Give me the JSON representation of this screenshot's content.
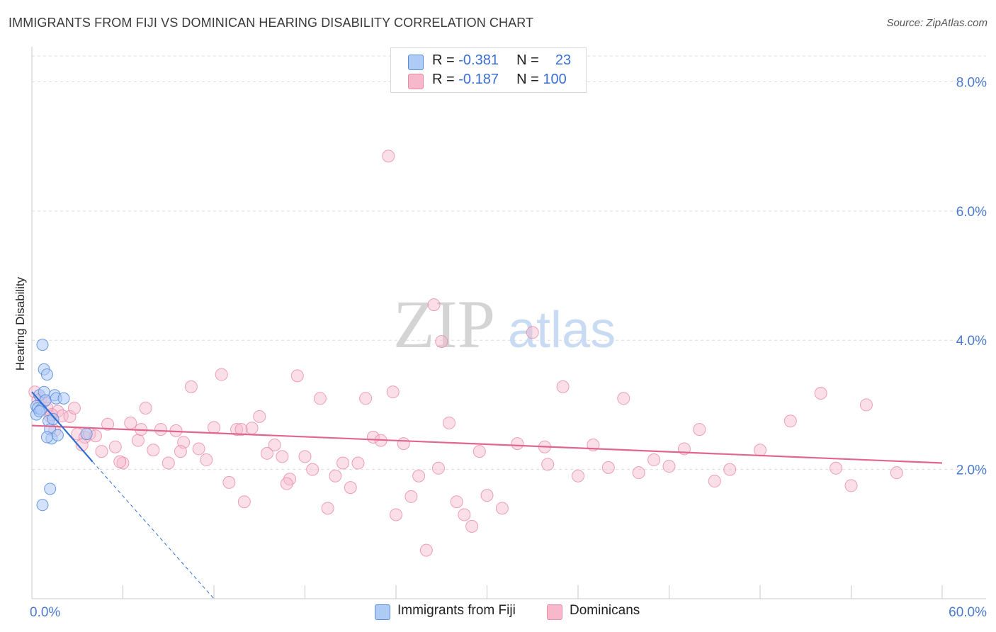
{
  "title": "IMMIGRANTS FROM FIJI VS DOMINICAN HEARING DISABILITY CORRELATION CHART",
  "source": "Source: ZipAtlas.com",
  "watermark": {
    "zip": "ZIP",
    "atlas": "atlas"
  },
  "legend": {
    "rows": [
      {
        "r_label": "R =",
        "r_value": "-0.381",
        "n_label": "N =",
        "n_value": "23"
      },
      {
        "r_label": "R =",
        "r_value": "-0.187",
        "n_label": "N =",
        "n_value": "100"
      }
    ]
  },
  "bottom_legend": [
    "Immigrants from Fiji",
    "Dominicans"
  ],
  "colors": {
    "fiji_fill": "#aecbf5",
    "fiji_stroke": "#5a8fe0",
    "fiji_line": "#2f6fd0",
    "dom_fill": "#f7b8cc",
    "dom_stroke": "#e98aa8",
    "dom_line": "#e06690",
    "grid": "#dedede",
    "tick_text": "#4a7bd0"
  },
  "chart_data": {
    "type": "scatter",
    "title": "IMMIGRANTS FROM FIJI VS DOMINICAN HEARING DISABILITY CORRELATION CHART",
    "xlabel": "",
    "ylabel": "Hearing Disability",
    "xlim": [
      0,
      60
    ],
    "ylim": [
      0,
      8.4
    ],
    "x_tick_labels": [
      "0.0%",
      "60.0%"
    ],
    "y_ticks": [
      2,
      4,
      6,
      8
    ],
    "y_tick_labels": [
      "2.0%",
      "4.0%",
      "6.0%",
      "8.0%"
    ],
    "series": [
      {
        "name": "Immigrants from Fiji",
        "x": [
          0.3,
          0.3,
          0.4,
          0.5,
          0.6,
          0.7,
          0.8,
          0.8,
          0.9,
          1.0,
          1.1,
          1.2,
          1.2,
          1.3,
          1.4,
          1.5,
          1.6,
          1.7,
          2.1,
          3.6,
          0.5,
          1.0,
          0.7
        ],
        "y": [
          2.98,
          2.85,
          2.95,
          3.15,
          2.93,
          3.93,
          3.55,
          3.2,
          3.07,
          3.47,
          2.75,
          2.62,
          1.7,
          2.48,
          2.78,
          3.15,
          3.1,
          2.53,
          3.1,
          2.55,
          2.9,
          2.5,
          1.45
        ],
        "trend": {
          "x0": 0,
          "y0": 3.2,
          "x1": 4.0,
          "y1": 2.12,
          "dashed_to_x": 12.0,
          "dashed_to_y": 0
        }
      },
      {
        "name": "Dominicans",
        "x": [
          0.2,
          0.4,
          0.6,
          0.8,
          1.0,
          1.2,
          1.5,
          1.7,
          2.0,
          2.5,
          3.0,
          3.5,
          3.8,
          4.2,
          4.6,
          5.0,
          5.5,
          6.0,
          6.5,
          7.0,
          7.5,
          8.0,
          8.5,
          9.0,
          9.5,
          10.0,
          10.5,
          11.0,
          11.5,
          12.0,
          12.5,
          13.0,
          13.5,
          14.0,
          14.5,
          15.0,
          15.5,
          16.0,
          16.5,
          17.0,
          17.5,
          18.0,
          18.5,
          19.0,
          19.5,
          20.0,
          20.5,
          21.0,
          21.5,
          22.0,
          22.5,
          23.0,
          23.5,
          24.0,
          24.5,
          25.0,
          25.5,
          26.0,
          26.5,
          27.0,
          27.5,
          28.0,
          28.5,
          29.0,
          29.5,
          30.0,
          31.0,
          32.0,
          33.0,
          34.0,
          35.0,
          36.0,
          37.0,
          38.0,
          39.0,
          40.0,
          41.0,
          42.0,
          43.0,
          44.0,
          45.0,
          46.0,
          48.0,
          50.0,
          52.0,
          53.0,
          54.0,
          55.0,
          57.0,
          1.3,
          2.8,
          3.3,
          5.8,
          7.2,
          9.8,
          13.8,
          16.8,
          23.8,
          26.8,
          33.8
        ],
        "y": [
          3.2,
          3.07,
          3.1,
          3.05,
          2.95,
          2.82,
          2.6,
          2.9,
          2.83,
          2.82,
          2.55,
          2.5,
          2.55,
          2.52,
          2.28,
          2.7,
          2.35,
          2.1,
          2.72,
          2.45,
          2.95,
          2.3,
          2.62,
          2.1,
          2.6,
          2.42,
          3.28,
          2.32,
          2.15,
          2.65,
          3.47,
          1.8,
          2.62,
          1.5,
          2.64,
          2.82,
          2.25,
          2.38,
          2.2,
          1.85,
          3.45,
          2.2,
          2.0,
          3.1,
          1.4,
          1.9,
          2.1,
          1.72,
          2.1,
          3.1,
          2.5,
          2.45,
          6.85,
          1.3,
          2.4,
          1.58,
          1.9,
          0.75,
          4.55,
          3.98,
          2.72,
          1.5,
          1.3,
          1.12,
          2.28,
          1.6,
          1.4,
          2.4,
          4.12,
          2.08,
          3.28,
          1.9,
          2.38,
          2.03,
          3.1,
          1.95,
          2.15,
          2.05,
          2.32,
          2.62,
          1.82,
          2.0,
          2.3,
          2.75,
          3.18,
          2.02,
          1.75,
          3.0,
          1.95,
          2.85,
          2.95,
          2.38,
          2.12,
          2.62,
          2.28,
          2.62,
          1.78,
          3.2,
          2.02,
          2.35
        ],
        "trend": {
          "x0": 0,
          "y0": 2.68,
          "x1": 60,
          "y1": 2.1
        }
      }
    ]
  }
}
